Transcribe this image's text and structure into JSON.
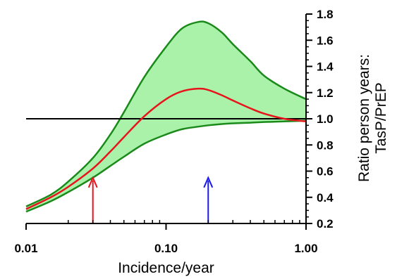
{
  "chart_data": {
    "type": "line",
    "xlabel": "Incidence/year",
    "ylabel_lines": [
      "Ratio person years:",
      "TasP/PrEP"
    ],
    "x_scale": "log",
    "xlim": [
      0.01,
      1.0
    ],
    "ylim": [
      0.2,
      1.8
    ],
    "x_ticks": [
      {
        "value": 0.01,
        "label": "0.01"
      },
      {
        "value": 0.1,
        "label": "0.10"
      },
      {
        "value": 1.0,
        "label": "1.00"
      }
    ],
    "y_ticks": [
      {
        "value": 0.2,
        "label": "0.2"
      },
      {
        "value": 0.4,
        "label": "0.4"
      },
      {
        "value": 0.6,
        "label": "0.6"
      },
      {
        "value": 0.8,
        "label": "0.8"
      },
      {
        "value": 1.0,
        "label": "1.0"
      },
      {
        "value": 1.2,
        "label": "1.2"
      },
      {
        "value": 1.4,
        "label": "1.4"
      },
      {
        "value": 1.6,
        "label": "1.6"
      },
      {
        "value": 1.8,
        "label": "1.8"
      }
    ],
    "band": {
      "x": [
        0.01,
        0.015,
        0.02,
        0.03,
        0.04,
        0.05,
        0.07,
        0.1,
        0.13,
        0.17,
        0.2,
        0.25,
        0.3,
        0.4,
        0.5,
        0.7,
        1.0
      ],
      "upper": [
        0.33,
        0.42,
        0.52,
        0.7,
        0.88,
        1.05,
        1.32,
        1.55,
        1.69,
        1.74,
        1.73,
        1.66,
        1.57,
        1.44,
        1.33,
        1.23,
        1.15
      ],
      "lower": [
        0.29,
        0.37,
        0.44,
        0.55,
        0.64,
        0.71,
        0.81,
        0.88,
        0.92,
        0.94,
        0.95,
        0.96,
        0.965,
        0.97,
        0.975,
        0.98,
        0.985
      ],
      "fill": "#aaf2aa",
      "stroke": "#1a8a1a"
    },
    "series": [
      {
        "x": [
          0.01,
          0.015,
          0.02,
          0.03,
          0.04,
          0.05,
          0.07,
          0.1,
          0.13,
          0.17,
          0.2,
          0.25,
          0.3,
          0.4,
          0.5,
          0.7,
          1.0
        ],
        "values": [
          0.31,
          0.4,
          0.48,
          0.62,
          0.75,
          0.86,
          1.02,
          1.15,
          1.21,
          1.23,
          1.22,
          1.18,
          1.14,
          1.08,
          1.04,
          1.0,
          0.98
        ],
        "color": "#e8141b"
      }
    ],
    "reference_line": {
      "y": 1.0,
      "color": "#000000"
    },
    "arrows": [
      {
        "x": 0.03,
        "y_from": 0.2,
        "y_to": 0.55,
        "color": "#e8141b"
      },
      {
        "x": 0.2,
        "y_from": 0.2,
        "y_to": 0.55,
        "color": "#1a1aee"
      }
    ],
    "grid": false,
    "legend": "none"
  }
}
